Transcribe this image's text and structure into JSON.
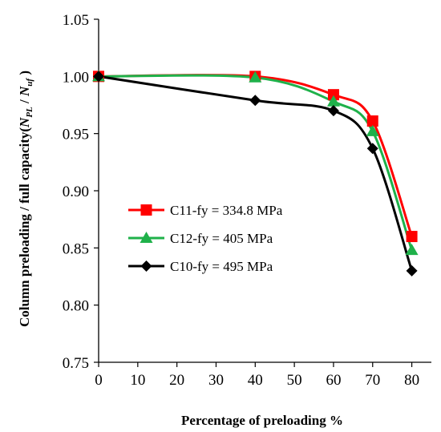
{
  "chart_data": {
    "type": "line",
    "title": "",
    "xlabel": "Percentage of preloading %",
    "ylabel": {
      "prefix": "Column preloading / full capacity(",
      "n1": "N",
      "s1": "PL",
      "mid": " / ",
      "n2": "N",
      "s2": "uf",
      "suffix": " )"
    },
    "xlim": [
      0,
      85
    ],
    "ylim": [
      0.75,
      1.05
    ],
    "xticks": [
      0,
      10,
      20,
      30,
      40,
      50,
      60,
      70,
      80
    ],
    "yticks": [
      0.75,
      0.8,
      0.85,
      0.9,
      0.95,
      1.0,
      1.05
    ],
    "ytick_labels": [
      "0.75",
      "0.80",
      "0.85",
      "0.90",
      "0.95",
      "1.00",
      "1.05"
    ],
    "grid": false,
    "legend_position": "center-left",
    "series": [
      {
        "name": "C11-fy = 334.8 MPa",
        "color": "#ff0000",
        "marker": "square",
        "x": [
          0,
          40,
          60,
          70,
          80
        ],
        "y": [
          1.0,
          1.0,
          0.984,
          0.961,
          0.86
        ]
      },
      {
        "name": "C12-fy = 405 MPa",
        "color": "#1fb14a",
        "marker": "triangle",
        "x": [
          0,
          40,
          60,
          70,
          80
        ],
        "y": [
          1.0,
          0.999,
          0.978,
          0.952,
          0.848
        ]
      },
      {
        "name": "C10-fy = 495 MPa",
        "color": "#000000",
        "marker": "diamond",
        "x": [
          0,
          40,
          60,
          70,
          80
        ],
        "y": [
          1.0,
          0.979,
          0.97,
          0.937,
          0.83
        ]
      }
    ]
  }
}
